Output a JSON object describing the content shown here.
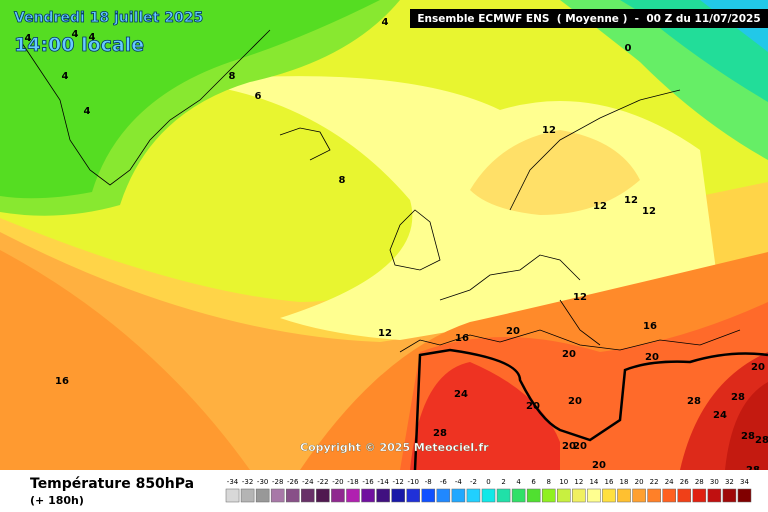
{
  "header": {
    "date": "Vendredi 18 juillet 2025",
    "time": "14:00 locale",
    "model": "Ensemble ECMWF ENS  ( Moyenne )  -  00 Z du 11/07/2025"
  },
  "map": {
    "contour_labels": [
      4,
      4,
      4,
      4,
      4,
      4,
      8,
      6,
      8,
      0,
      12,
      12,
      12,
      12,
      12,
      16,
      12,
      16,
      20,
      20,
      20,
      20,
      16,
      24,
      20,
      20,
      28,
      28,
      24,
      28,
      28,
      28,
      20,
      20,
      20,
      28
    ],
    "copyright": "Copyright © 2025 Meteociel.fr"
  },
  "footer": {
    "title": "Température 850hPa",
    "lead": "(+ 180h)"
  },
  "legend": {
    "values": [
      -34,
      -32,
      -30,
      -28,
      -26,
      -24,
      -22,
      -20,
      -18,
      -16,
      -14,
      -12,
      -10,
      -8,
      -6,
      -4,
      -2,
      0,
      2,
      4,
      6,
      8,
      10,
      12,
      14,
      16,
      18,
      20,
      22,
      24,
      26,
      28,
      30,
      32,
      34
    ],
    "colors": [
      "#d8d8d8",
      "#b4b4b4",
      "#989898",
      "#a878a8",
      "#885088",
      "#683068",
      "#501850",
      "#902890",
      "#b020b0",
      "#7010a0",
      "#401080",
      "#1818a8",
      "#2030d8",
      "#1050ff",
      "#2088ff",
      "#20a8ff",
      "#20d0ff",
      "#10e8e8",
      "#20e0a8",
      "#30e068",
      "#50e030",
      "#90f020",
      "#c8f040",
      "#f0f060",
      "#ffff90",
      "#ffe040",
      "#ffc030",
      "#ffa030",
      "#ff8028",
      "#ff6020",
      "#f04018",
      "#e02010",
      "#c01010",
      "#a00808",
      "#800000"
    ]
  }
}
